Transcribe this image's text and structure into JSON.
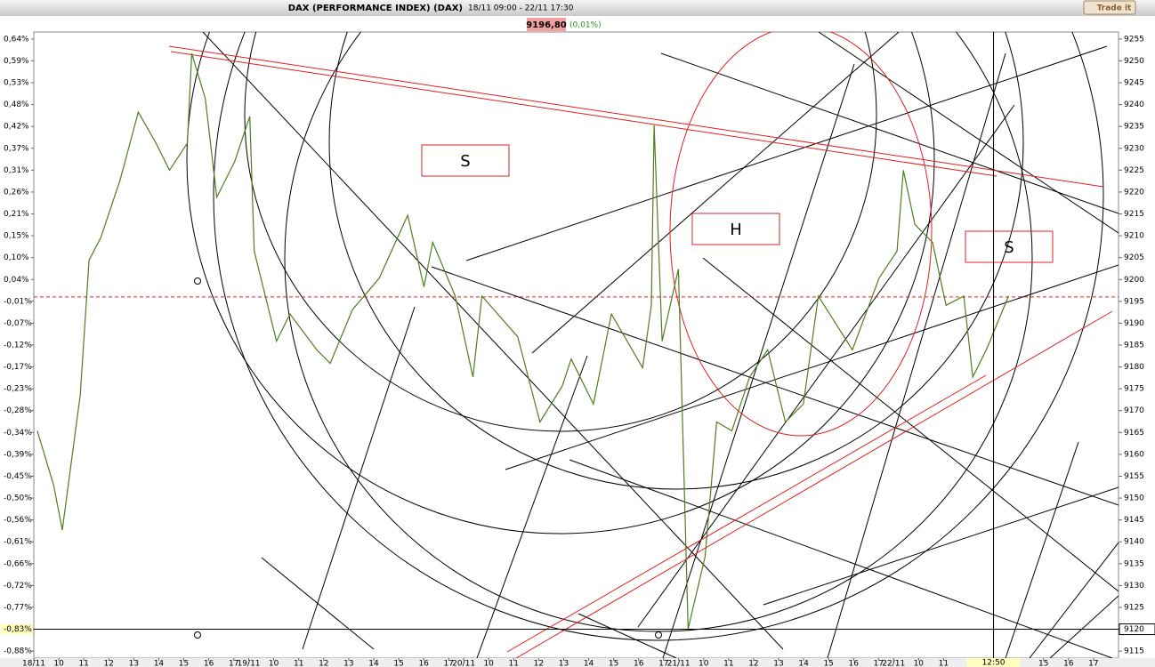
{
  "header": {
    "title": "DAX (PERFORMANCE INDEX) (DAX)",
    "range": "18/11 09:00 - 22/11 17:30",
    "button": "Trade it",
    "price": "9196,80",
    "change": "(0,01%)"
  },
  "chart_data": {
    "type": "line",
    "color": "#4f7d1f",
    "x": [
      0.14,
      0.79,
      1.14,
      1.86,
      2.21,
      2.68,
      3.46,
      4.18,
      4.89,
      5.43,
      6.14,
      6.32,
      6.86,
      7.32,
      8.04,
      8.64,
      8.82,
      9.71,
      10.25,
      11.32,
      11.86,
      12.75,
      13.82,
      14.96,
      15.61,
      15.96,
      16.86,
      17.57,
      17.93,
      19.36,
      20.25,
      21.14,
      21.5,
      22.39,
      23.11,
      24.36,
      24.71,
      24.82,
      25.14,
      25.79,
      26.18,
      26.86,
      27.32,
      27.93,
      28.64,
      29.36,
      30.07,
      30.79,
      31.39,
      32.75,
      33.82,
      34.54,
      34.79,
      35.25,
      35.96,
      36.5,
      37.21,
      37.57,
      38.11,
      39.0
    ],
    "values": [
      9165.4,
      9153,
      9142.7,
      9173.6,
      9204.4,
      9209.6,
      9222.9,
      9238.3,
      9231.2,
      9225,
      9231.2,
      9251.7,
      9241.4,
      9218.8,
      9227,
      9237.3,
      9206.5,
      9185.9,
      9192.1,
      9183.9,
      9180.8,
      9193.1,
      9200.3,
      9214.7,
      9198.3,
      9208.5,
      9196.2,
      9177.7,
      9196.2,
      9186.9,
      9167.4,
      9175.6,
      9181.8,
      9171.5,
      9192.1,
      9179.8,
      9194.1,
      9235.3,
      9185.9,
      9202.4,
      9120.1,
      9136.6,
      9167.4,
      9165.4,
      9177.7,
      9183.9,
      9167.4,
      9171.5,
      9196.2,
      9183.9,
      9200.3,
      9206.5,
      9225,
      9212.6,
      9208.5,
      9194.1,
      9196.2,
      9177.7,
      9183.9,
      9196.2
    ],
    "xlim": [
      0,
      43.4
    ],
    "ylim": [
      9113.4,
      9256.6
    ],
    "yticks": [
      9255,
      9250,
      9245,
      9240,
      9235,
      9230,
      9225,
      9220,
      9215,
      9210,
      9205,
      9200,
      9195,
      9190,
      9185,
      9180,
      9175,
      9170,
      9165,
      9160,
      9155,
      9150,
      9145,
      9140,
      9135,
      9130,
      9125,
      9120,
      9115
    ],
    "left_ticks": [
      {
        "value": 9255,
        "label": "0,64%"
      },
      {
        "value": 9250,
        "label": "0,59%"
      },
      {
        "value": 9245,
        "label": "0,53%"
      },
      {
        "value": 9240,
        "label": "0,48%"
      },
      {
        "value": 9235,
        "label": "0,42%"
      },
      {
        "value": 9230,
        "label": "0,37%"
      },
      {
        "value": 9225,
        "label": "0,31%"
      },
      {
        "value": 9220,
        "label": "0,26%"
      },
      {
        "value": 9215,
        "label": "0,21%"
      },
      {
        "value": 9210,
        "label": "0,15%"
      },
      {
        "value": 9205,
        "label": "0,10%"
      },
      {
        "value": 9200,
        "label": "0,04%"
      },
      {
        "value": 9195,
        "label": "-0,01%"
      },
      {
        "value": 9190,
        "label": "-0,07%"
      },
      {
        "value": 9185,
        "label": "-0,12%"
      },
      {
        "value": 9180,
        "label": "-0,17%"
      },
      {
        "value": 9175,
        "label": "-0,23%"
      },
      {
        "value": 9170,
        "label": "-0,28%"
      },
      {
        "value": 9165,
        "label": "-0,34%"
      },
      {
        "value": 9160,
        "label": "-0,39%"
      },
      {
        "value": 9155,
        "label": "-0,45%"
      },
      {
        "value": 9150,
        "label": "-0,50%"
      },
      {
        "value": 9145,
        "label": "-0,56%"
      },
      {
        "value": 9140,
        "label": "-0,61%"
      },
      {
        "value": 9135,
        "label": "-0,66%"
      },
      {
        "value": 9130,
        "label": "-0,72%"
      },
      {
        "value": 9125,
        "label": "-0,77%"
      },
      {
        "value": 9120,
        "label": "-0,83%"
      },
      {
        "value": 9115,
        "label": "-0,88%"
      }
    ],
    "xticks": [
      {
        "value": 0,
        "label": "18/11"
      },
      {
        "value": 1,
        "label": "10"
      },
      {
        "value": 2,
        "label": "11"
      },
      {
        "value": 3,
        "label": "12"
      },
      {
        "value": 4,
        "label": "13"
      },
      {
        "value": 5,
        "label": "14"
      },
      {
        "value": 6,
        "label": "15"
      },
      {
        "value": 7,
        "label": "16"
      },
      {
        "value": 8,
        "label": "17"
      },
      {
        "value": 8.6,
        "label": "19/11"
      },
      {
        "value": 9.6,
        "label": "10"
      },
      {
        "value": 10.6,
        "label": "11"
      },
      {
        "value": 11.6,
        "label": "12"
      },
      {
        "value": 12.6,
        "label": "13"
      },
      {
        "value": 13.6,
        "label": "14"
      },
      {
        "value": 14.6,
        "label": "15"
      },
      {
        "value": 15.6,
        "label": "16"
      },
      {
        "value": 16.6,
        "label": "17"
      },
      {
        "value": 17.2,
        "label": "20/11"
      },
      {
        "value": 18.2,
        "label": "10"
      },
      {
        "value": 19.2,
        "label": "11"
      },
      {
        "value": 20.2,
        "label": "12"
      },
      {
        "value": 21.2,
        "label": "13"
      },
      {
        "value": 22.2,
        "label": "14"
      },
      {
        "value": 23.2,
        "label": "15"
      },
      {
        "value": 24.2,
        "label": "16"
      },
      {
        "value": 25.2,
        "label": "17"
      },
      {
        "value": 25.8,
        "label": "21/11"
      },
      {
        "value": 26.8,
        "label": "10"
      },
      {
        "value": 27.8,
        "label": "11"
      },
      {
        "value": 28.8,
        "label": "12"
      },
      {
        "value": 29.8,
        "label": "13"
      },
      {
        "value": 30.8,
        "label": "14"
      },
      {
        "value": 31.8,
        "label": "15"
      },
      {
        "value": 32.8,
        "label": "16"
      },
      {
        "value": 33.8,
        "label": "17"
      },
      {
        "value": 34.4,
        "label": "22/11"
      },
      {
        "value": 35.4,
        "label": "10"
      },
      {
        "value": 36.4,
        "label": "11"
      },
      {
        "value": 40.4,
        "label": "15"
      },
      {
        "value": 41.4,
        "label": "16"
      },
      {
        "value": 42.4,
        "label": "17"
      }
    ],
    "ref_line": 9196,
    "hcursor": 9120,
    "hcursor_left": 27,
    "vcursor": 38.4,
    "vcursor_label": "12:50",
    "annotations": [
      "S",
      "H",
      "S"
    ]
  }
}
